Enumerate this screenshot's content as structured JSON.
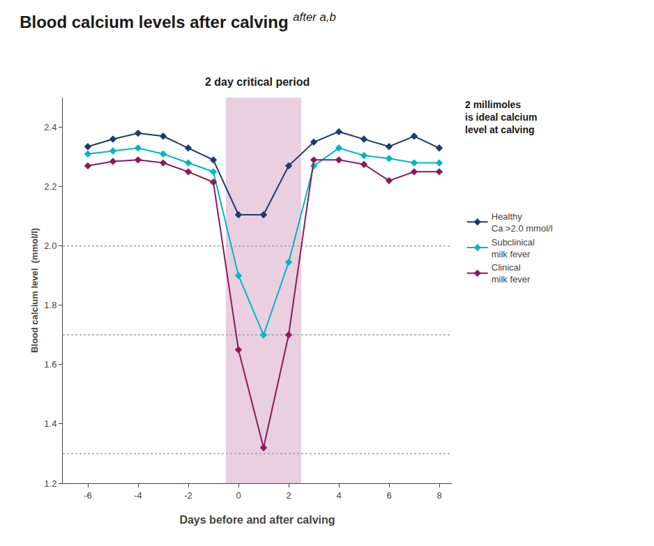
{
  "chart_data": {
    "type": "line",
    "title": "Blood calcium levels after calving",
    "subtitle": "2 day critical period",
    "annotations": [
      "after a,b",
      "2 millimoles\nis ideal calcium\nlevel at calving"
    ],
    "xlabel": "Days before and after calving",
    "ylabel": "Blood calcium level  (mmol/l)",
    "x": [
      -6,
      -5,
      -4,
      -3,
      -2,
      -1,
      0,
      1,
      2,
      3,
      4,
      5,
      6,
      7,
      8
    ],
    "series": [
      {
        "name": "Healthy\nCa >2.0 mmol/l",
        "color": "#1e3a6e",
        "marker": "diamond",
        "values": [
          2.335,
          2.36,
          2.38,
          2.37,
          2.33,
          2.29,
          2.105,
          2.105,
          2.27,
          2.35,
          2.385,
          2.36,
          2.335,
          2.37,
          2.33
        ]
      },
      {
        "name": "Subclinical\nmilk fever",
        "color": "#00b5c8",
        "marker": "diamond",
        "values": [
          2.31,
          2.32,
          2.33,
          2.31,
          2.28,
          2.25,
          1.9,
          1.7,
          1.945,
          2.27,
          2.33,
          2.305,
          2.295,
          2.28,
          2.28
        ]
      },
      {
        "name": "Clinical\nmilk fever",
        "color": "#8b1a5a",
        "marker": "diamond",
        "values": [
          2.27,
          2.285,
          2.29,
          2.28,
          2.25,
          2.215,
          1.65,
          1.32,
          1.7,
          2.29,
          2.29,
          2.275,
          2.22,
          2.25,
          2.25
        ]
      }
    ],
    "xlim": [
      -7,
      8.5
    ],
    "ylim": [
      1.2,
      2.5
    ],
    "xticks": [
      -6,
      -4,
      -2,
      0,
      2,
      4,
      6,
      8
    ],
    "yticks": [
      1.2,
      1.4,
      1.6,
      1.8,
      {
        "value": 2.0,
        "label": "2.0"
      },
      2.2,
      2.4
    ],
    "hlines": [
      2.0,
      1.7,
      1.3
    ],
    "critical_period": {
      "x": [
        -0.5,
        2.5
      ],
      "color": "#d4a0c0"
    },
    "grid": false,
    "legend": "right"
  }
}
